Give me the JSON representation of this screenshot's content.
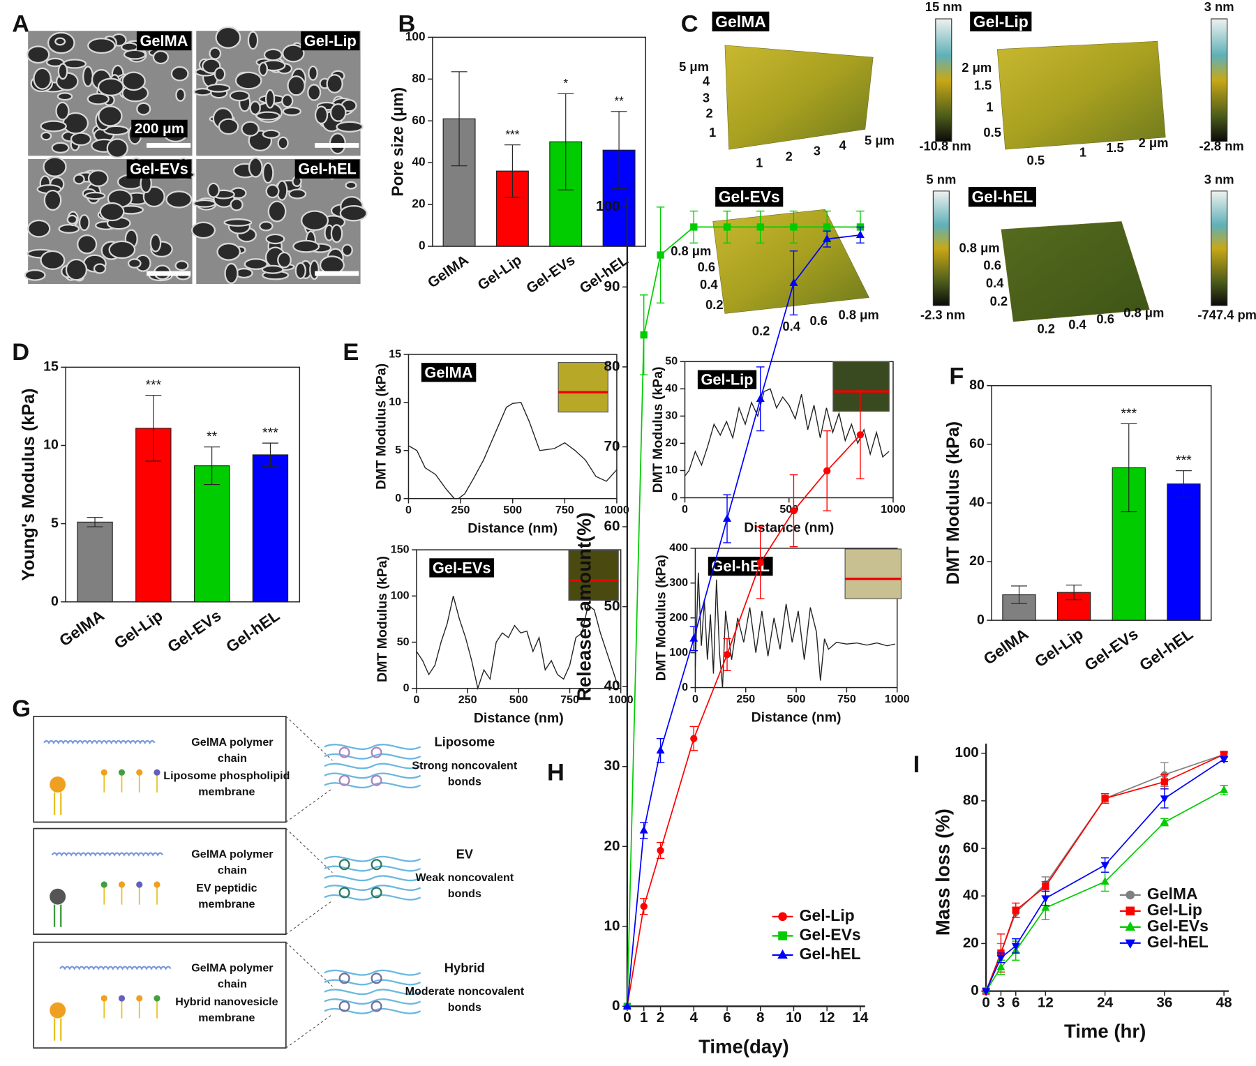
{
  "panel_labels": [
    "A",
    "B",
    "C",
    "D",
    "E",
    "F",
    "G",
    "H",
    "I"
  ],
  "sem": {
    "labels": [
      "GelMA",
      "Gel-Lip",
      "Gel-EVs",
      "Gel-hEL"
    ],
    "scale_bar": "200 μm"
  },
  "afm": {
    "panels": [
      {
        "title": "GelMA",
        "y_ticks": [
          "5 μm",
          "4",
          "3",
          "2",
          "1"
        ],
        "x_ticks": [
          "1",
          "2",
          "3",
          "4",
          "5 μm"
        ],
        "color_max": "15 nm",
        "color_min": "-10.8 nm"
      },
      {
        "title": "Gel-Lip",
        "y_ticks": [
          "2 μm",
          "1.5",
          "1",
          "0.5"
        ],
        "x_ticks": [
          "0.5",
          "1",
          "1.5",
          "2 μm"
        ],
        "color_max": "3 nm",
        "color_min": "-2.8 nm"
      },
      {
        "title": "Gel-EVs",
        "y_ticks": [
          "0.8 μm",
          "0.6",
          "0.4",
          "0.2"
        ],
        "x_ticks": [
          "0.2",
          "0.4",
          "0.6",
          "0.8 μm"
        ],
        "color_max": "5 nm",
        "color_min": "-2.3 nm"
      },
      {
        "title": "Gel-hEL",
        "y_ticks": [
          "0.8 μm",
          "0.6",
          "0.4",
          "0.2"
        ],
        "x_ticks": [
          "0.2",
          "0.4",
          "0.6",
          "0.8 μm"
        ],
        "color_max": "3 nm",
        "color_min": "-747.4 pm"
      }
    ]
  },
  "diagram": {
    "boxes": [
      {
        "chain": [
          "GelMA polymer",
          "chain"
        ],
        "membrane": [
          "Liposome phospholipid",
          "membrane"
        ],
        "kind": "Liposome",
        "bond": [
          "Strong noncovalent",
          "bonds"
        ]
      },
      {
        "chain": [
          "GelMA polymer",
          "chain"
        ],
        "membrane": [
          "EV peptidic",
          "membrane"
        ],
        "kind": "EV",
        "bond": [
          "Weak noncovalent",
          "bonds"
        ]
      },
      {
        "chain": [
          "GelMA polymer",
          "chain"
        ],
        "membrane": [
          "Hybrid nanovesicle",
          "membrane"
        ],
        "kind": "Hybrid",
        "bond": [
          "Moderate noncovalent",
          "bonds"
        ]
      }
    ]
  },
  "chart_data": [
    {
      "type": "bar",
      "y_label": "Pore size (μm)",
      "categories": [
        "GelMA",
        "Gel-Lip",
        "Gel-EVs",
        "Gel-hEL"
      ],
      "values": [
        61,
        36,
        50,
        46
      ],
      "errors": [
        22.5,
        12.5,
        23,
        18.5
      ],
      "significance": [
        null,
        "***",
        "*",
        "**"
      ],
      "colors": [
        "#808080",
        "#ff0000",
        "#00cc00",
        "#0000ff"
      ],
      "ylim": [
        0,
        100
      ],
      "yticks": [
        0,
        20,
        40,
        60,
        80,
        100
      ]
    },
    {
      "type": "bar",
      "y_label": "Young's Modulus (kPa)",
      "categories": [
        "GelMA",
        "Gel-Lip",
        "Gel-EVs",
        "Gel-hEL"
      ],
      "values": [
        5.1,
        11.1,
        8.7,
        9.4
      ],
      "errors": [
        0.3,
        2.1,
        1.2,
        0.75
      ],
      "significance": [
        null,
        "***",
        "**",
        "***"
      ],
      "colors": [
        "#808080",
        "#ff0000",
        "#00cc00",
        "#0000ff"
      ],
      "ylim": [
        0,
        15
      ],
      "yticks": [
        0,
        5,
        10,
        15
      ]
    },
    {
      "type": "bar",
      "y_label": "DMT Modulus (kPa)",
      "categories": [
        "GelMA",
        "Gel-Lip",
        "Gel-EVs",
        "Gel-hEL"
      ],
      "values": [
        8.7,
        9.5,
        52,
        46.5
      ],
      "errors": [
        3,
        2.5,
        15,
        4.5
      ],
      "significance": [
        null,
        null,
        "***",
        "***"
      ],
      "colors": [
        "#808080",
        "#ff0000",
        "#00cc00",
        "#0000ff"
      ],
      "ylim": [
        0,
        80
      ],
      "yticks": [
        0,
        20,
        40,
        60,
        80
      ]
    },
    {
      "type": "line",
      "title": "GelMA",
      "x_label": "Distance (nm)",
      "y_label": "DMT Modulus (kPa)",
      "x": [
        0,
        40,
        80,
        130,
        180,
        220,
        240,
        270,
        310,
        360,
        420,
        470,
        500,
        540,
        580,
        630,
        700,
        750,
        800,
        850,
        900,
        950,
        1000
      ],
      "values": [
        5.5,
        5,
        3.2,
        2.5,
        1,
        0,
        0,
        0.5,
        2,
        4,
        7,
        9.5,
        9.9,
        10,
        8,
        5,
        5.2,
        5.8,
        5,
        4,
        2.3,
        1.8,
        3
      ],
      "xlim": [
        0,
        1000
      ],
      "xticks": [
        0,
        250,
        500,
        750,
        1000
      ],
      "ylim": [
        0,
        15
      ],
      "yticks": [
        0,
        5,
        10,
        15
      ]
    },
    {
      "type": "line",
      "title": "Gel-Lip",
      "x_label": "Distance (nm)",
      "y_label": "DMT Modulus (kPa)",
      "x": [
        0,
        20,
        50,
        80,
        110,
        140,
        170,
        200,
        230,
        260,
        290,
        320,
        350,
        380,
        410,
        440,
        470,
        500,
        530,
        560,
        590,
        620,
        650,
        680,
        710,
        740,
        770,
        800,
        830,
        860,
        890,
        920,
        950,
        980
      ],
      "values": [
        8,
        10,
        17,
        12,
        19,
        27,
        23,
        28,
        22,
        33,
        27,
        35,
        30,
        39,
        40,
        33,
        37,
        34,
        29,
        38,
        25,
        34,
        22,
        33,
        24,
        31,
        21,
        27,
        20,
        25,
        16,
        24,
        15,
        17
      ],
      "xlim": [
        0,
        1000
      ],
      "xticks": [
        0,
        500,
        1000
      ],
      "ylim": [
        0,
        50
      ],
      "yticks": [
        0,
        10,
        20,
        30,
        40,
        50
      ]
    },
    {
      "type": "line",
      "title": "Gel-EVs",
      "x_label": "Distance (nm)",
      "y_label": "DMT Modulus (kPa)",
      "x": [
        0,
        30,
        60,
        90,
        120,
        150,
        180,
        210,
        240,
        270,
        300,
        330,
        360,
        390,
        420,
        450,
        480,
        510,
        540,
        570,
        600,
        630,
        660,
        690,
        720,
        750,
        780,
        810,
        840,
        870,
        900,
        930,
        960,
        990
      ],
      "values": [
        40,
        30,
        15,
        25,
        50,
        70,
        100,
        75,
        55,
        30,
        0,
        20,
        10,
        50,
        60,
        55,
        68,
        60,
        62,
        40,
        55,
        20,
        30,
        15,
        10,
        25,
        55,
        60,
        90,
        85,
        60,
        40,
        20,
        0
      ],
      "xlim": [
        0,
        1000
      ],
      "xticks": [
        0,
        250,
        500,
        750,
        1000
      ],
      "ylim": [
        0,
        150
      ],
      "yticks": [
        0,
        50,
        100,
        150
      ]
    },
    {
      "type": "line",
      "title": "Gel-hEL",
      "x_label": "Distance (nm)",
      "y_label": "DMT Modulus (kPa)",
      "x": [
        0,
        15,
        30,
        45,
        60,
        75,
        90,
        105,
        120,
        135,
        150,
        180,
        210,
        240,
        270,
        300,
        330,
        360,
        390,
        420,
        450,
        480,
        510,
        540,
        570,
        600,
        620,
        640,
        660,
        700,
        750,
        800,
        850,
        900,
        950,
        990
      ],
      "values": [
        60,
        330,
        120,
        250,
        80,
        210,
        40,
        310,
        100,
        0,
        220,
        80,
        200,
        130,
        230,
        100,
        220,
        90,
        200,
        110,
        240,
        130,
        220,
        80,
        230,
        160,
        20,
        140,
        110,
        130,
        125,
        128,
        122,
        128,
        120,
        125
      ],
      "xlim": [
        0,
        1000
      ],
      "xticks": [
        0,
        250,
        500,
        750,
        1000
      ],
      "ylim": [
        0,
        400
      ],
      "yticks": [
        0,
        100,
        200,
        300,
        400
      ]
    },
    {
      "type": "line",
      "x_label": "Time(day)",
      "y_label": "Released amount(%)",
      "x": [
        0,
        1,
        2,
        4,
        6,
        8,
        10,
        12,
        14
      ],
      "xlim": [
        0,
        14
      ],
      "xticks": [
        0,
        1,
        2,
        4,
        6,
        8,
        10,
        12,
        14
      ],
      "ylim": [
        0,
        100
      ],
      "yticks": [
        0,
        10,
        20,
        30,
        40,
        50,
        60,
        70,
        80,
        90,
        100
      ],
      "legend": "lower right",
      "series": [
        {
          "name": "Gel-Lip",
          "color": "#ff0000",
          "marker": "circle",
          "values": [
            0,
            12.5,
            19.5,
            33.5,
            44,
            55.5,
            62,
            67,
            71.5
          ],
          "errors": [
            0,
            1,
            1,
            1.5,
            2,
            4.5,
            4.5,
            5,
            5.5
          ]
        },
        {
          "name": "Gel-EVs",
          "color": "#00cc00",
          "marker": "square",
          "values": [
            0,
            84,
            94,
            97.5,
            97.5,
            97.5,
            97.5,
            97.5,
            97.5
          ],
          "errors": [
            0,
            5,
            6,
            2,
            2,
            2,
            2,
            2,
            2
          ]
        },
        {
          "name": "Gel-hEL",
          "color": "#0000ff",
          "marker": "triangle",
          "values": [
            0,
            22,
            32,
            46,
            61,
            76,
            90.5,
            96,
            96.5
          ],
          "errors": [
            0,
            1,
            1.5,
            1.5,
            3,
            4,
            4,
            1,
            1
          ]
        }
      ]
    },
    {
      "type": "line",
      "x_label": "Time (hr)",
      "y_label": "Mass loss (%)",
      "x": [
        0,
        3,
        6,
        12,
        24,
        36,
        48
      ],
      "xlim": [
        0,
        48
      ],
      "xticks": [
        0,
        3,
        6,
        12,
        24,
        36,
        48
      ],
      "ylim": [
        0,
        100
      ],
      "yticks": [
        0,
        20,
        40,
        60,
        80,
        100
      ],
      "legend": "lower right",
      "series": [
        {
          "name": "GelMA",
          "color": "#808080",
          "marker": "circle",
          "values": [
            0,
            16,
            33,
            45,
            81,
            91,
            99.5
          ],
          "errors": [
            0,
            4,
            2,
            3,
            2,
            5,
            1
          ]
        },
        {
          "name": "Gel-Lip",
          "color": "#ff0000",
          "marker": "square",
          "values": [
            0,
            16,
            34,
            44,
            81,
            88,
            99.5
          ],
          "errors": [
            0,
            8,
            3,
            2,
            2,
            3,
            1
          ]
        },
        {
          "name": "Gel-EVs",
          "color": "#00cc00",
          "marker": "triangle",
          "values": [
            0,
            10,
            17,
            35,
            46,
            71,
            84.5
          ],
          "errors": [
            0,
            3,
            4,
            5,
            4,
            1.5,
            2
          ]
        },
        {
          "name": "Gel-hEL",
          "color": "#0000ff",
          "marker": "triangle-down",
          "values": [
            0,
            14,
            19,
            39,
            53,
            81,
            97.5
          ],
          "errors": [
            0,
            2,
            3,
            3,
            3,
            4,
            1
          ]
        }
      ]
    }
  ]
}
